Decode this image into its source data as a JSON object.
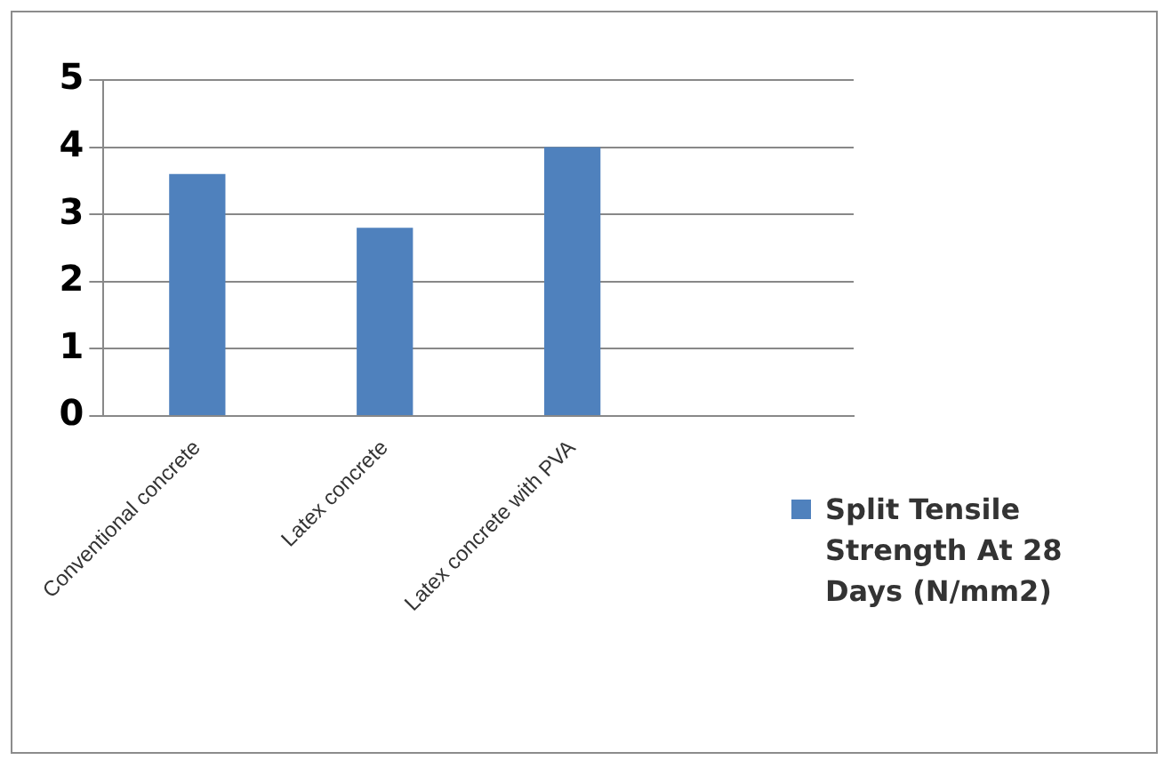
{
  "chart_data": {
    "type": "bar",
    "categories": [
      "Conventional concrete",
      "Latex concrete",
      "Latex concrete with PVA",
      null
    ],
    "series": [
      {
        "name": "Split Tensile Strength At 28 Days (N/mm2)",
        "color": "#4f81bd",
        "values": [
          3.6,
          2.8,
          4.0,
          null
        ]
      }
    ],
    "ylim": [
      0,
      5
    ],
    "yticks": [
      0,
      1,
      2,
      3,
      4,
      5
    ],
    "grid": "y",
    "legend": "right"
  }
}
